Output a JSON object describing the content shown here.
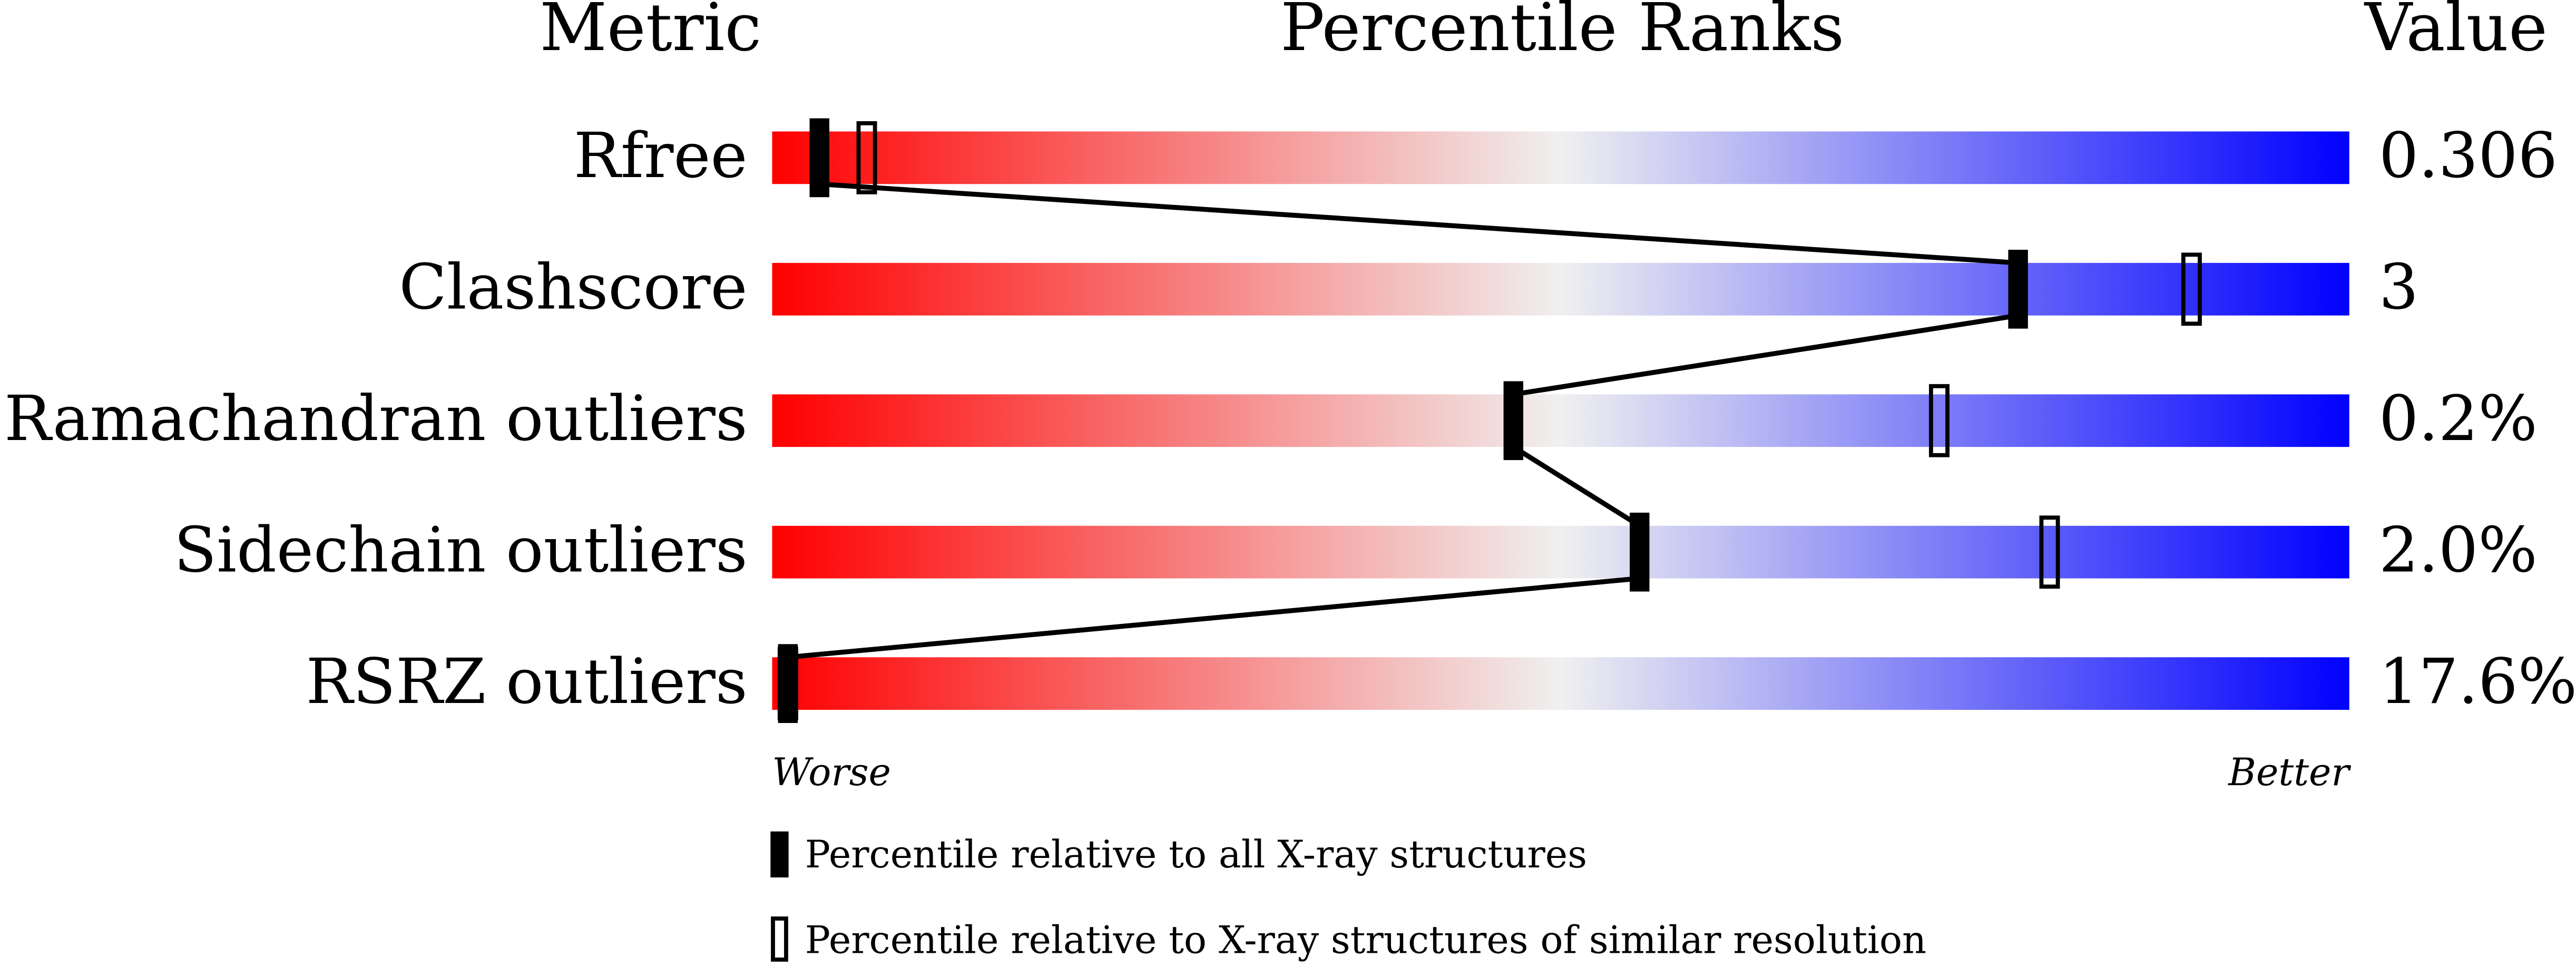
{
  "chart_data": {
    "type": "percentile",
    "headers": {
      "metric": "Metric",
      "ranks": "Percentile Ranks",
      "value": "Value"
    },
    "xlim": [
      0,
      100
    ],
    "gradient": [
      "#ff0000",
      "#f0f0f0",
      "#0000ff"
    ],
    "metrics": [
      {
        "name": "Rfree",
        "value": "0.306",
        "percentile_all": 3,
        "percentile_similar": 6
      },
      {
        "name": "Clashscore",
        "value": "3",
        "percentile_all": 79,
        "percentile_similar": 90
      },
      {
        "name": "Ramachandran outliers",
        "value": "0.2%",
        "percentile_all": 47,
        "percentile_similar": 74
      },
      {
        "name": "Sidechain outliers",
        "value": "2.0%",
        "percentile_all": 55,
        "percentile_similar": 81
      },
      {
        "name": "RSRZ outliers",
        "value": "17.6%",
        "percentile_all": 1,
        "percentile_similar": 1
      }
    ],
    "axis_labels": {
      "worse": "Worse",
      "better": "Better"
    },
    "legend": {
      "all": "Percentile relative to all X-ray structures",
      "similar": "Percentile relative to X-ray structures of similar resolution"
    }
  }
}
